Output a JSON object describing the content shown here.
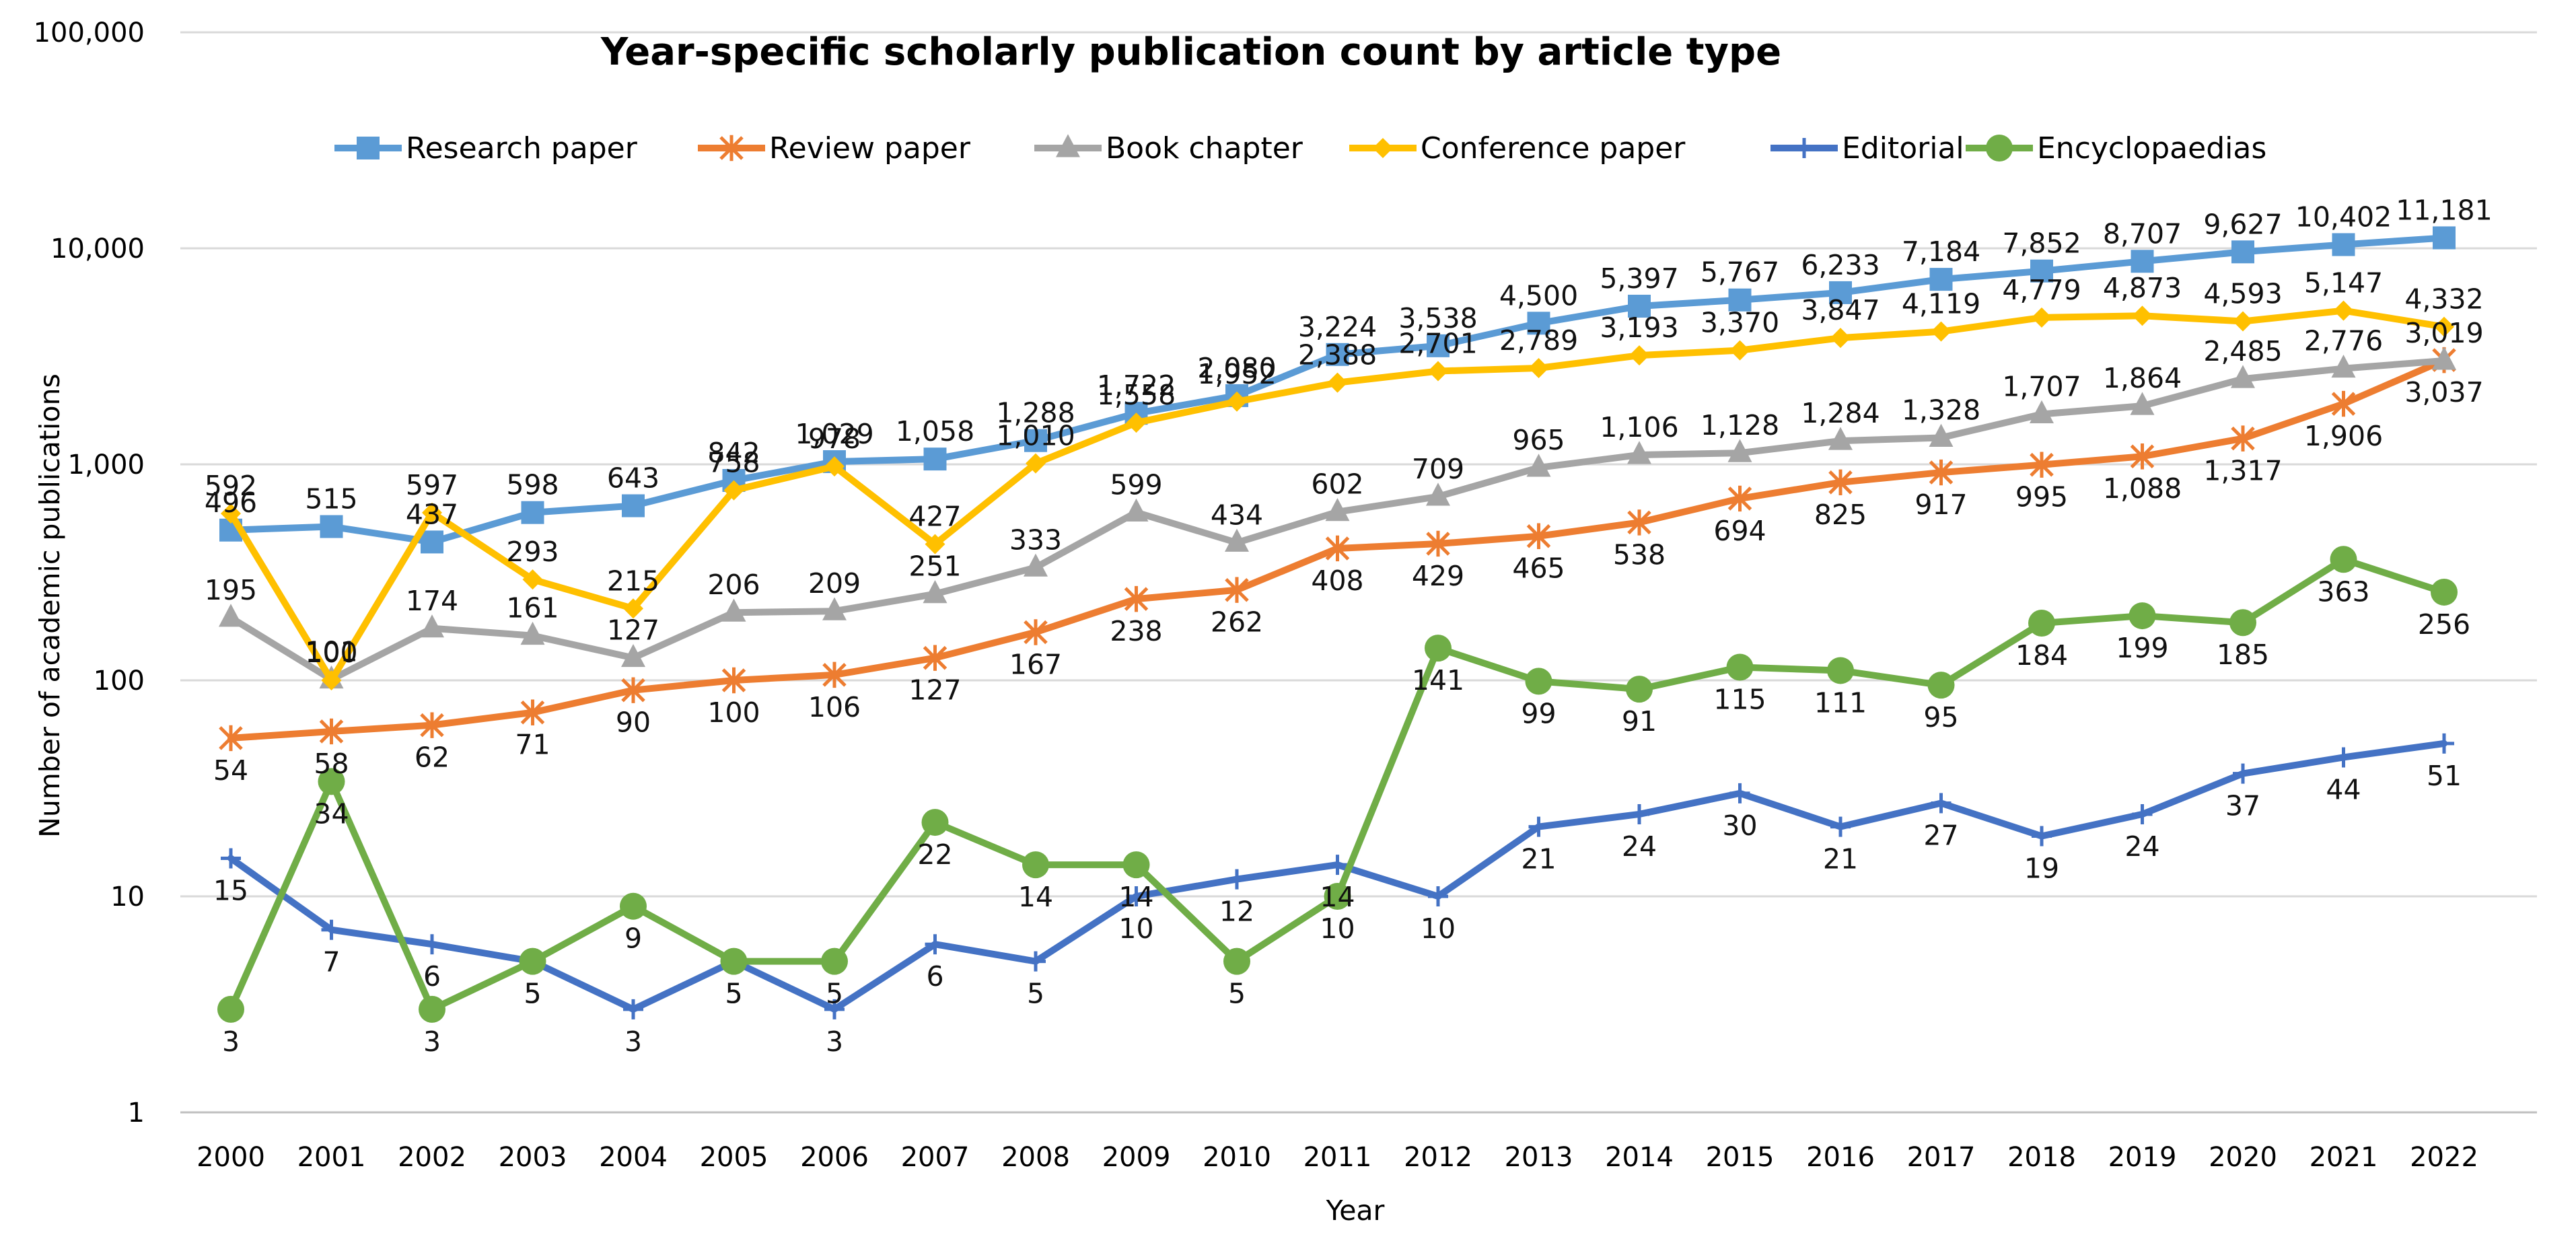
{
  "chart_data": {
    "type": "line",
    "title": "Year-specific scholarly publication count by article type",
    "xlabel": "Year",
    "ylabel": "Number of academic publications",
    "yscale": "log",
    "ylim": [
      1,
      100000
    ],
    "yticks": [
      "1",
      "10",
      "100",
      "1,000",
      "10,000",
      "100,000"
    ],
    "grid": "horizontal",
    "legend": "top",
    "categories": [
      "2000",
      "2001",
      "2002",
      "2003",
      "2004",
      "2005",
      "2006",
      "2007",
      "2008",
      "2009",
      "2010",
      "2011",
      "2012",
      "2013",
      "2014",
      "2015",
      "2016",
      "2017",
      "2018",
      "2019",
      "2020",
      "2021",
      "2022"
    ],
    "series": [
      {
        "name": "Research paper",
        "color": "#5B9BD5",
        "marker": "square",
        "values": [
          496,
          515,
          437,
          598,
          643,
          842,
          1029,
          1058,
          1288,
          1722,
          2080,
          3224,
          3538,
          4500,
          5397,
          5767,
          6233,
          7184,
          7852,
          8707,
          9627,
          10402,
          11181
        ],
        "labels": [
          "496",
          "515",
          "437",
          "598",
          "643",
          "842",
          "1,029",
          "1,058",
          "1,288",
          "1,722",
          "2,080",
          "3,224",
          "3,538",
          "4,500",
          "5,397",
          "5,767",
          "6,233",
          "7,184",
          "7,852",
          "8,707",
          "9,627",
          "10,402",
          "11,181"
        ]
      },
      {
        "name": "Review paper",
        "color": "#ED7D31",
        "marker": "star",
        "values": [
          54,
          58,
          62,
          71,
          90,
          100,
          106,
          127,
          167,
          238,
          262,
          408,
          429,
          465,
          538,
          694,
          825,
          917,
          995,
          1088,
          1317,
          1906,
          3037
        ],
        "labels": [
          "54",
          "58",
          "62",
          "71",
          "90",
          "100",
          "106",
          "127",
          "167",
          "238",
          "262",
          "408",
          "429",
          "465",
          "538",
          "694",
          "825",
          "917",
          "995",
          "1,088",
          "1,317",
          "1,906",
          "3,037"
        ]
      },
      {
        "name": "Book chapter",
        "color": "#A5A5A5",
        "marker": "triangle",
        "values": [
          195,
          101,
          174,
          161,
          127,
          206,
          209,
          251,
          333,
          599,
          434,
          602,
          709,
          965,
          1106,
          1128,
          1284,
          1328,
          1707,
          1864,
          2485,
          2776,
          3019
        ],
        "labels": [
          "195",
          "101",
          "174",
          "161",
          "127",
          "206",
          "209",
          "251",
          "333",
          "599",
          "434",
          "602",
          "709",
          "965",
          "1,106",
          "1,128",
          "1,284",
          "1,328",
          "1,707",
          "1,864",
          "2,485",
          "2,776",
          "3,019"
        ]
      },
      {
        "name": "Conference paper",
        "color": "#FFC000",
        "marker": "diamond",
        "values": [
          592,
          100,
          597,
          293,
          215,
          758,
          978,
          427,
          1010,
          1558,
          1952,
          2388,
          2701,
          2789,
          3193,
          3370,
          3847,
          4119,
          4779,
          4873,
          4593,
          5147,
          4332
        ],
        "labels": [
          "592",
          "100",
          "597",
          "293",
          "215",
          "758",
          "978",
          "427",
          "1,010",
          "1,558",
          "1,952",
          "2,388",
          "2,701",
          "2,789",
          "3,193",
          "3,370",
          "3,847",
          "4,119",
          "4,779",
          "4,873",
          "4,593",
          "5,147",
          "4,332"
        ]
      },
      {
        "name": "Editorial",
        "color": "#4472C4",
        "marker": "plus",
        "values": [
          15,
          7,
          6,
          5,
          3,
          5,
          3,
          6,
          5,
          10,
          12,
          14,
          10,
          21,
          24,
          30,
          21,
          27,
          19,
          24,
          37,
          44,
          51
        ],
        "labels": [
          "15",
          "7",
          "6",
          "5",
          "3",
          "5",
          "3",
          "6",
          "5",
          "10",
          "12",
          "14",
          "10",
          "21",
          "24",
          "30",
          "21",
          "27",
          "19",
          "24",
          "37",
          "44",
          "51"
        ]
      },
      {
        "name": "Encyclopaedias",
        "color": "#70AD47",
        "marker": "circle",
        "values": [
          3,
          34,
          3,
          5,
          9,
          5,
          5,
          22,
          14,
          14,
          5,
          10,
          141,
          99,
          91,
          115,
          111,
          95,
          184,
          199,
          185,
          363,
          256
        ],
        "labels": [
          "3",
          "34",
          "3",
          "5",
          "9",
          "5",
          "5",
          "22",
          "14",
          "14",
          "5",
          "10",
          "141",
          "99",
          "91",
          "115",
          "111",
          "95",
          "184",
          "199",
          "185",
          "363",
          "256"
        ]
      }
    ]
  }
}
